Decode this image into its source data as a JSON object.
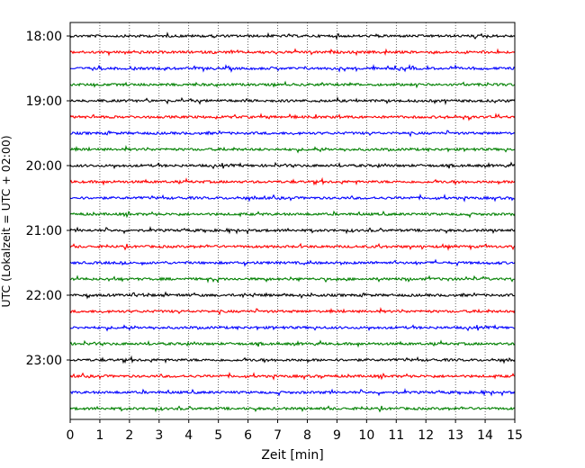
{
  "chart_data": {
    "type": "line",
    "title": "",
    "xlabel": "Zeit  [min]",
    "ylabel": "UTC (Lokalzeit = UTC + 02:00)",
    "xlim": [
      0,
      15
    ],
    "x_ticks": [
      "0",
      "1",
      "2",
      "3",
      "4",
      "5",
      "6",
      "7",
      "8",
      "9",
      "10",
      "11",
      "12",
      "13",
      "14",
      "15"
    ],
    "y_ticks": [
      "18:00",
      "19:00",
      "20:00",
      "21:00",
      "22:00",
      "23:00"
    ],
    "grid_x": true,
    "trace_interval_min": 15,
    "traces": [
      {
        "start": "18:00",
        "color": "#000000"
      },
      {
        "start": "18:15",
        "color": "#ff0000"
      },
      {
        "start": "18:30",
        "color": "#0000ff"
      },
      {
        "start": "18:45",
        "color": "#008000"
      },
      {
        "start": "19:00",
        "color": "#000000"
      },
      {
        "start": "19:15",
        "color": "#ff0000"
      },
      {
        "start": "19:30",
        "color": "#0000ff"
      },
      {
        "start": "19:45",
        "color": "#008000"
      },
      {
        "start": "20:00",
        "color": "#000000"
      },
      {
        "start": "20:15",
        "color": "#ff0000"
      },
      {
        "start": "20:30",
        "color": "#0000ff"
      },
      {
        "start": "20:45",
        "color": "#008000"
      },
      {
        "start": "21:00",
        "color": "#000000"
      },
      {
        "start": "21:15",
        "color": "#ff0000"
      },
      {
        "start": "21:30",
        "color": "#0000ff"
      },
      {
        "start": "21:45",
        "color": "#008000"
      },
      {
        "start": "22:00",
        "color": "#000000"
      },
      {
        "start": "22:15",
        "color": "#ff0000"
      },
      {
        "start": "22:30",
        "color": "#0000ff"
      },
      {
        "start": "22:45",
        "color": "#008000"
      },
      {
        "start": "23:00",
        "color": "#000000"
      },
      {
        "start": "23:15",
        "color": "#ff0000"
      },
      {
        "start": "23:30",
        "color": "#0000ff"
      },
      {
        "start": "23:45",
        "color": "#008000"
      }
    ]
  }
}
